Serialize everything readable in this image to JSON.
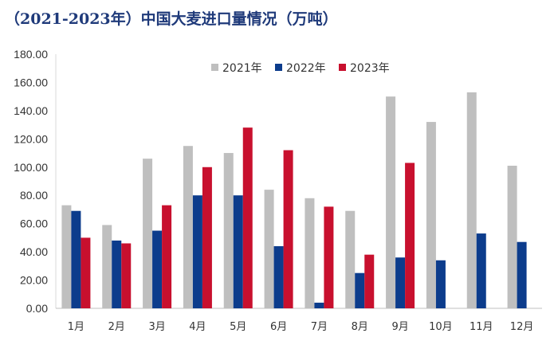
{
  "chart_data": {
    "type": "bar",
    "title": "（2021-2023年）中国大麦进口量情况（万吨）",
    "xlabel": "",
    "ylabel": "",
    "categories": [
      "1月",
      "2月",
      "3月",
      "4月",
      "5月",
      "6月",
      "7月",
      "8月",
      "9月",
      "10月",
      "11月",
      "12月"
    ],
    "y_tick_labels": [
      "0.00",
      "20.00",
      "40.00",
      "60.00",
      "80.00",
      "100.00",
      "120.00",
      "140.00",
      "160.00",
      "180.00"
    ],
    "ylim": [
      0,
      180
    ],
    "grid": false,
    "legend_position": "top",
    "series": [
      {
        "name": "2021年",
        "color": "#bfbfbf",
        "values": [
          73,
          59,
          106,
          115,
          110,
          84,
          78,
          69,
          150,
          132,
          153,
          101
        ]
      },
      {
        "name": "2022年",
        "color": "#0c3c8c",
        "values": [
          69,
          48,
          55,
          80,
          80,
          44,
          4,
          25,
          36,
          34,
          53,
          47
        ]
      },
      {
        "name": "2023年",
        "color": "#c8102e",
        "values": [
          50,
          46,
          73,
          100,
          128,
          112,
          72,
          38,
          103,
          null,
          null,
          null
        ]
      }
    ]
  }
}
